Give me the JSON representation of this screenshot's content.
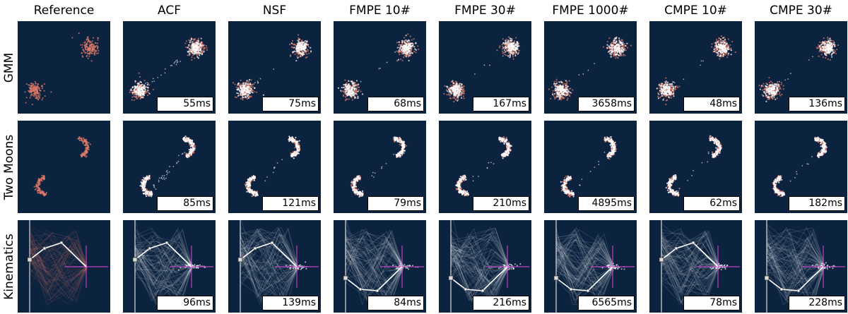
{
  "columns": [
    "Reference",
    "ACF",
    "NSF",
    "FMPE 10#",
    "FMPE 30#",
    "FMPE 1000#",
    "CMPE 10#",
    "CMPE 30#"
  ],
  "rows": [
    "GMM",
    "Two Moons",
    "Kinematics"
  ],
  "timings": [
    [
      "",
      "55ms",
      "75ms",
      "68ms",
      "167ms",
      "3658ms",
      "48ms",
      "136ms"
    ],
    [
      "",
      "85ms",
      "121ms",
      "79ms",
      "210ms",
      "4895ms",
      "62ms",
      "182ms"
    ],
    [
      "",
      "96ms",
      "139ms",
      "84ms",
      "216ms",
      "6565ms",
      "78ms",
      "228ms"
    ]
  ],
  "colors": {
    "panel_background": "#0c2340",
    "reference_samples": "#e07a68",
    "approximate_samples": "#ffffff",
    "target_marker": "#c040c0"
  }
}
